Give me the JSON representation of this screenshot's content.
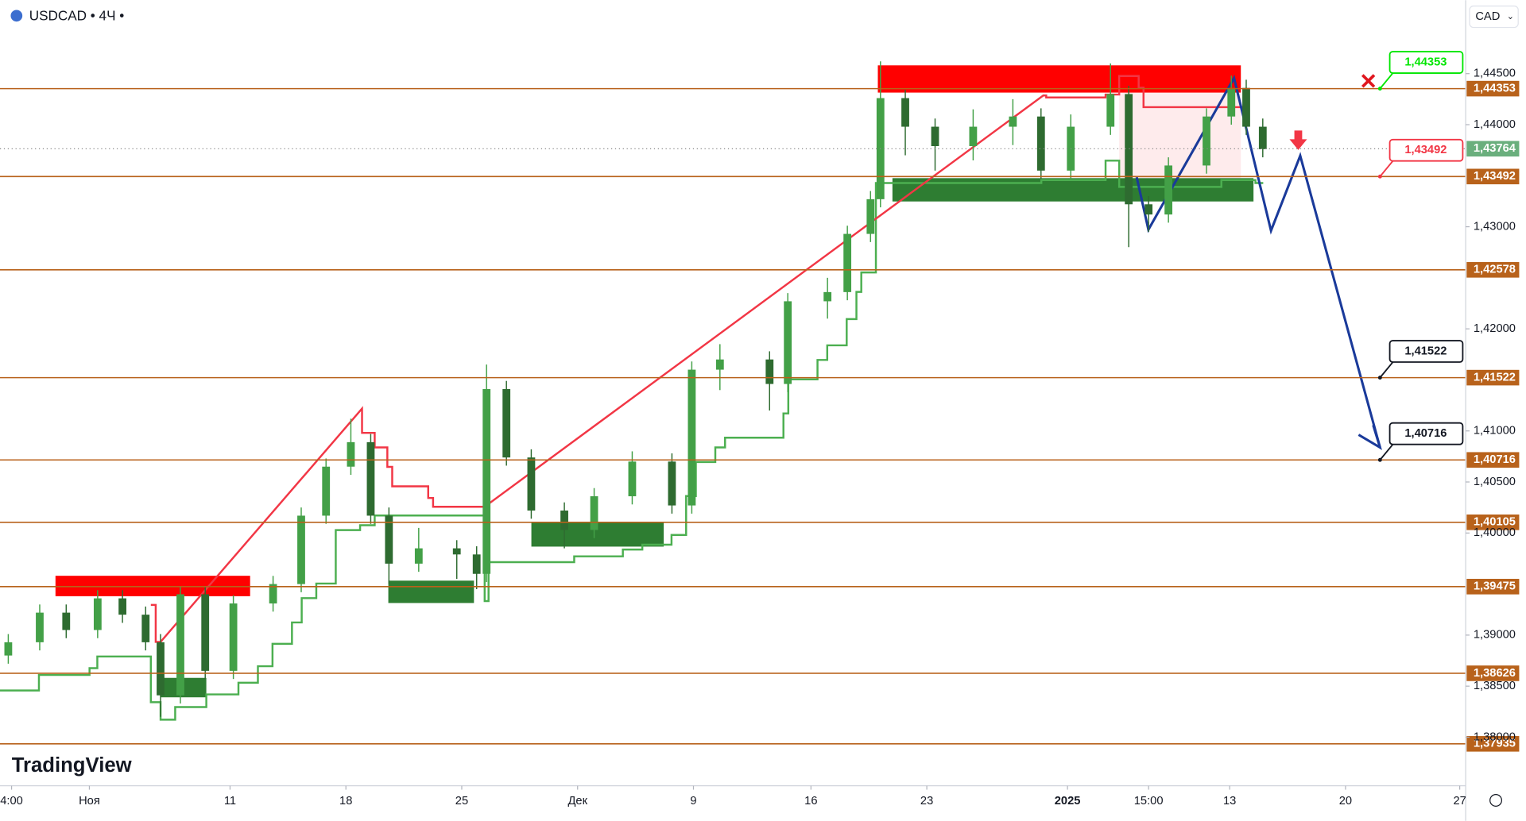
{
  "header": {
    "symbol": "USDCAD • 4Ч •",
    "currency": "CAD"
  },
  "brand": "TradingView",
  "chart_data": {
    "type": "candlestick",
    "x": [
      0.5,
      2.4,
      4.0,
      5.9,
      7.4,
      8.8,
      9.7,
      10.9,
      12.4,
      14.1,
      16.5,
      18.2,
      19.7,
      21.2,
      22.4,
      23.5,
      25.3,
      27.6,
      28.8,
      29.4,
      30.6,
      32.1,
      34.1,
      35.9,
      38.2,
      40.6,
      41.8,
      43.5,
      46.5,
      47.6,
      50.0,
      51.2,
      52.6,
      53.2,
      54.7,
      56.5,
      58.8,
      61.2,
      62.9,
      64.7,
      67.1,
      68.2,
      69.4,
      70.6,
      72.9,
      74.4,
      75.3,
      76.3
    ],
    "open": [
      1.388,
      1.3893,
      1.3922,
      1.3905,
      1.3936,
      1.392,
      1.3893,
      1.3841,
      1.394,
      1.3865,
      1.3931,
      1.395,
      1.4017,
      1.4065,
      1.4089,
      1.4017,
      1.397,
      1.3985,
      1.3979,
      1.396,
      1.4141,
      1.4074,
      1.4022,
      1.4003,
      1.4036,
      1.407,
      1.4027,
      1.416,
      1.417,
      1.4146,
      1.4227,
      1.4236,
      1.4293,
      1.4327,
      1.4426,
      1.4398,
      1.4379,
      1.4398,
      1.4408,
      1.4355,
      1.4398,
      1.443,
      1.4322,
      1.4312,
      1.436,
      1.4408,
      1.4436,
      1.4398
    ],
    "high": [
      1.3901,
      1.393,
      1.393,
      1.3944,
      1.3944,
      1.3928,
      1.3901,
      1.3948,
      1.3948,
      1.3939,
      1.3958,
      1.4025,
      1.4073,
      1.4112,
      1.4097,
      1.4025,
      1.4005,
      1.3993,
      1.3987,
      1.4165,
      1.4149,
      1.4082,
      1.403,
      1.4044,
      1.408,
      1.4078,
      1.4168,
      1.4185,
      1.4178,
      1.4235,
      1.425,
      1.4301,
      1.4335,
      1.4462,
      1.4434,
      1.4406,
      1.4415,
      1.4425,
      1.4416,
      1.441,
      1.446,
      1.4438,
      1.433,
      1.4368,
      1.4416,
      1.4448,
      1.4444,
      1.4406
    ],
    "low": [
      1.3872,
      1.3885,
      1.3897,
      1.3897,
      1.3912,
      1.3885,
      1.382,
      1.3833,
      1.3857,
      1.3857,
      1.3923,
      1.3942,
      1.4009,
      1.4057,
      1.4009,
      1.395,
      1.3962,
      1.3955,
      1.3945,
      1.3952,
      1.4066,
      1.4014,
      1.3985,
      1.3995,
      1.4028,
      1.4019,
      1.4019,
      1.414,
      1.412,
      1.4138,
      1.421,
      1.4228,
      1.4285,
      1.4319,
      1.437,
      1.4355,
      1.4365,
      1.438,
      1.4347,
      1.4347,
      1.439,
      1.428,
      1.4295,
      1.4304,
      1.4352,
      1.44,
      1.439,
      1.4368
    ],
    "close": [
      1.3893,
      1.3922,
      1.3905,
      1.3936,
      1.392,
      1.3893,
      1.3841,
      1.394,
      1.3865,
      1.3931,
      1.395,
      1.4017,
      1.4065,
      1.4089,
      1.4017,
      1.397,
      1.3985,
      1.3979,
      1.396,
      1.4141,
      1.4074,
      1.4022,
      1.4003,
      1.4036,
      1.407,
      1.4027,
      1.416,
      1.417,
      1.4146,
      1.4227,
      1.4236,
      1.4293,
      1.4327,
      1.4426,
      1.4398,
      1.4379,
      1.4398,
      1.4408,
      1.4355,
      1.4398,
      1.443,
      1.4322,
      1.4312,
      1.436,
      1.4408,
      1.4436,
      1.4398,
      1.4376
    ],
    "up_color": "#43a047",
    "down_color": "#2e6b30",
    "xlim": [
      0,
      88.5
    ],
    "xticks": [
      {
        "value": 0.7,
        "label": "4:00"
      },
      {
        "value": 5.4,
        "label": "Ноя"
      },
      {
        "value": 13.9,
        "label": "11"
      },
      {
        "value": 20.9,
        "label": "18"
      },
      {
        "value": 27.9,
        "label": "25"
      },
      {
        "value": 34.9,
        "label": "Дек"
      },
      {
        "value": 41.9,
        "label": "9"
      },
      {
        "value": 49.0,
        "label": "16"
      },
      {
        "value": 56.0,
        "label": "23"
      },
      {
        "value": 64.5,
        "label": "2025"
      },
      {
        "value": 69.4,
        "label": "15:00"
      },
      {
        "value": 74.3,
        "label": "13"
      },
      {
        "value": 81.3,
        "label": "20"
      },
      {
        "value": 88.2,
        "label": "27"
      }
    ],
    "ylim": [
      1.37524,
      1.45219
    ],
    "yticks": [
      {
        "value": 1.445,
        "label": "1,44500"
      },
      {
        "value": 1.44,
        "label": "1,44000"
      },
      {
        "value": 1.43,
        "label": "1,43000"
      },
      {
        "value": 1.42,
        "label": "1,42000"
      },
      {
        "value": 1.41,
        "label": "1,41000"
      },
      {
        "value": 1.405,
        "label": "1,40500"
      },
      {
        "value": 1.4,
        "label": "1,40000"
      },
      {
        "value": 1.39,
        "label": "1,39000"
      },
      {
        "value": 1.385,
        "label": "1,38500"
      },
      {
        "value": 1.38,
        "label": "1,38000"
      }
    ],
    "levels": [
      {
        "value": 1.44353,
        "label": "1,44353"
      },
      {
        "value": 1.43492,
        "label": "1,43492"
      },
      {
        "value": 1.42578,
        "label": "1,42578"
      },
      {
        "value": 1.41522,
        "label": "1,41522"
      },
      {
        "value": 1.40716,
        "label": "1,40716"
      },
      {
        "value": 1.40105,
        "label": "1,40105"
      },
      {
        "value": 1.39475,
        "label": "1,39475"
      },
      {
        "value": 1.38626,
        "label": "1,38626"
      },
      {
        "value": 1.37935,
        "label": "1,37935"
      }
    ],
    "level_color": "#b8621b",
    "last_price": {
      "value": 1.43764,
      "label": "1,43764",
      "color": "#6aaf7d"
    },
    "callouts": [
      {
        "value": 1.44353,
        "label": "1,44353",
        "color": "#00e600"
      },
      {
        "value": 1.43492,
        "label": "1,43492",
        "color": "#f23645"
      },
      {
        "value": 1.41522,
        "label": "1,41522",
        "color": "#131722"
      },
      {
        "value": 1.40716,
        "label": "1,40716",
        "color": "#131722"
      }
    ]
  }
}
